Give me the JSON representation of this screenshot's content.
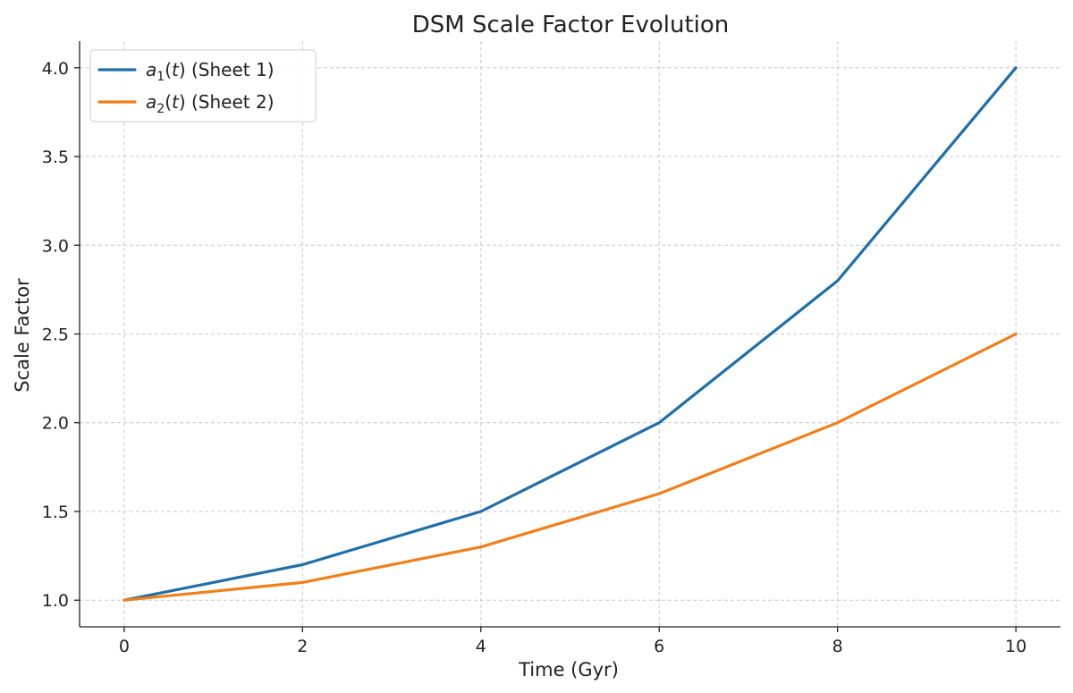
{
  "chart_data": {
    "type": "line",
    "title": "DSM Scale Factor Evolution",
    "xlabel": "Time (Gyr)",
    "ylabel": "Scale Factor",
    "x": [
      0,
      2,
      4,
      6,
      8,
      10
    ],
    "xlim": [
      -0.5,
      10.5
    ],
    "ylim": [
      0.85,
      4.15
    ],
    "xticks": [
      0,
      2,
      4,
      6,
      8,
      10
    ],
    "xtick_labels": [
      "0",
      "2",
      "4",
      "6",
      "8",
      "10"
    ],
    "yticks": [
      1.0,
      1.5,
      2.0,
      2.5,
      3.0,
      3.5,
      4.0
    ],
    "ytick_labels": [
      "1.0",
      "1.5",
      "2.0",
      "2.5",
      "3.0",
      "3.5",
      "4.0"
    ],
    "grid": true,
    "legend_position": "top-left",
    "series": [
      {
        "name": "a1(t) (Sheet 1)",
        "legend": {
          "var": "a",
          "sub": "1",
          "arg": "t",
          "suffix": " (Sheet 1)"
        },
        "color": "#1f6fa8",
        "values": [
          1.0,
          1.2,
          1.5,
          2.0,
          2.8,
          4.0
        ]
      },
      {
        "name": "a2(t) (Sheet 2)",
        "legend": {
          "var": "a",
          "sub": "2",
          "arg": "t",
          "suffix": " (Sheet 2)"
        },
        "color": "#f07f1a",
        "values": [
          1.0,
          1.1,
          1.3,
          1.6,
          2.0,
          2.5
        ]
      }
    ]
  }
}
